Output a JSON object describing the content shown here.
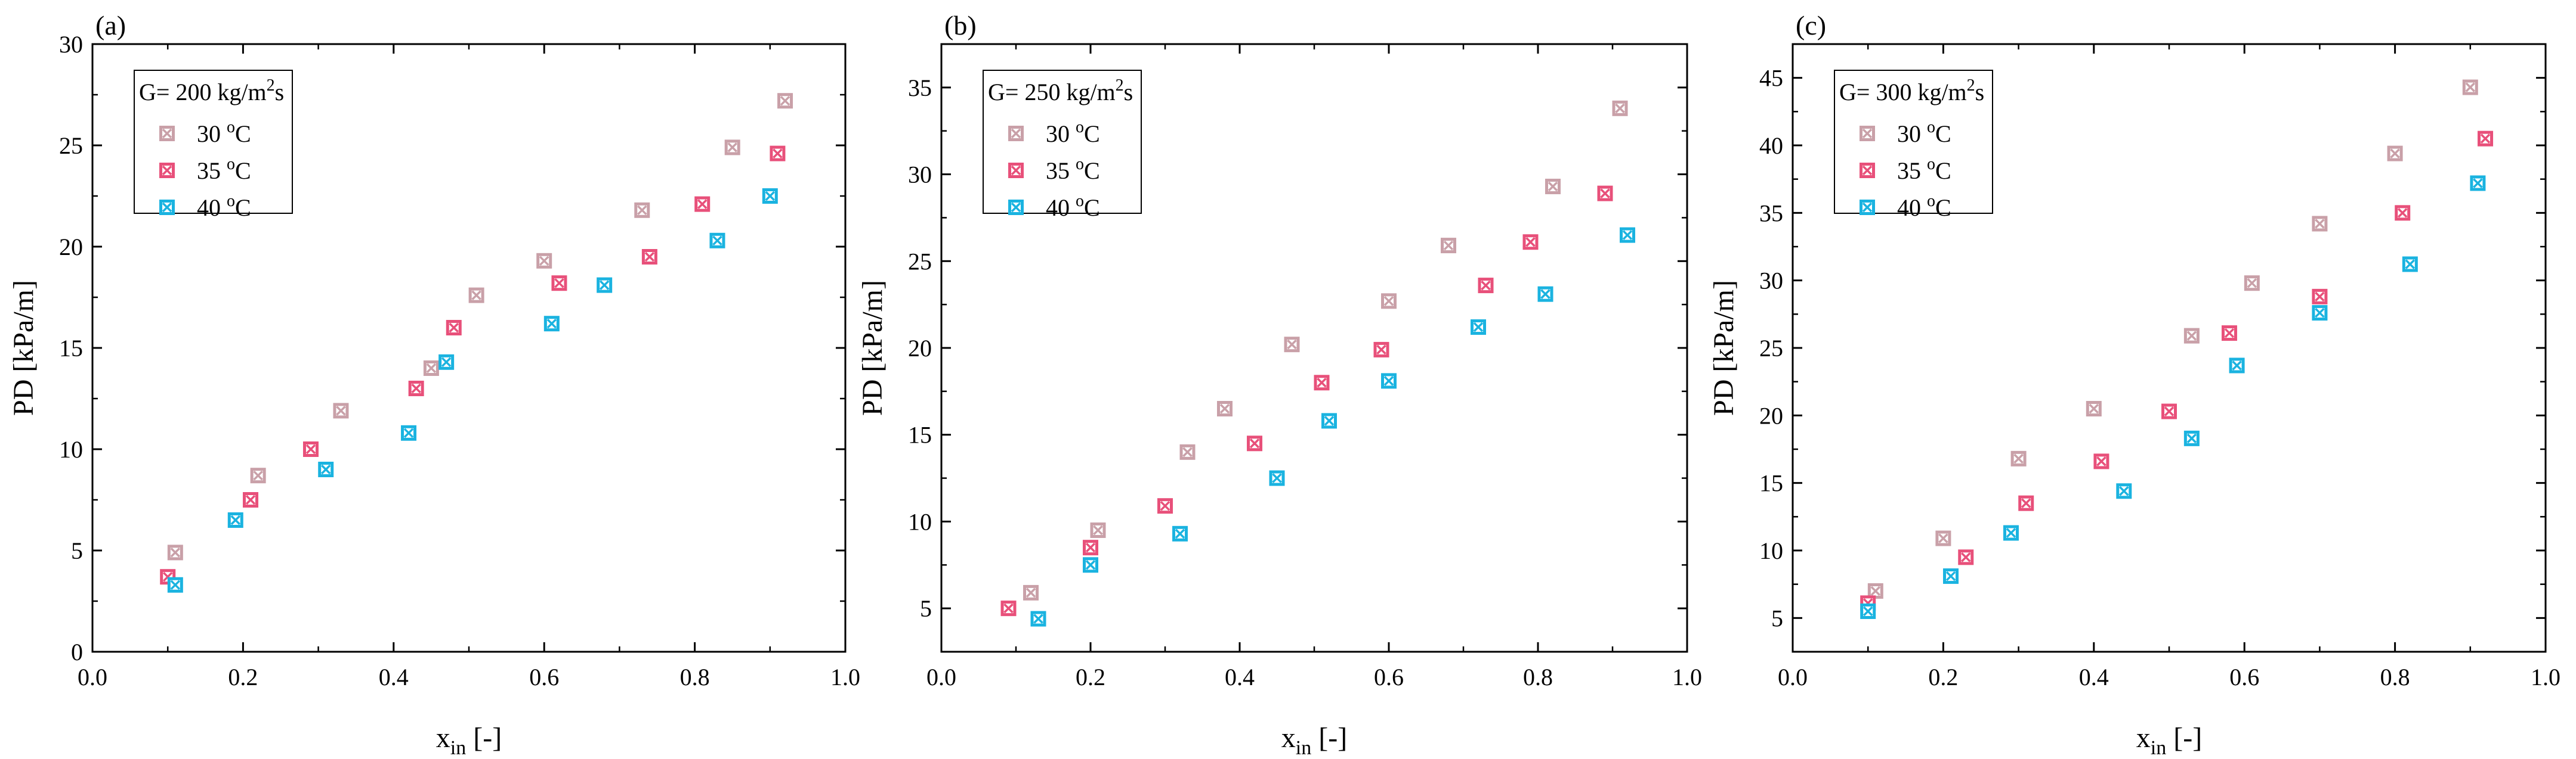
{
  "chart_data": [
    {
      "type": "scatter",
      "panel": "(a)",
      "legend_title": "G= 200 kg/m",
      "legend_title_sup": "2",
      "legend_title_tail": "s",
      "xlabel_main": "x",
      "xlabel_sub": "in",
      "xlabel_tail": " [-]",
      "ylabel": "PD [kPa/m]",
      "xlim": [
        0.0,
        1.0
      ],
      "ylim": [
        0,
        30
      ],
      "xticks": [
        "0.0",
        "0.2",
        "0.4",
        "0.6",
        "0.8",
        "1.0"
      ],
      "yticks": [
        "0",
        "5",
        "10",
        "15",
        "20",
        "25",
        "30"
      ],
      "legend_position": "top-left",
      "grid": false,
      "series": [
        {
          "name": "30 °C",
          "name_base": "30 ",
          "name_sup": "o",
          "name_unit": "C",
          "color": "#c9a0a8",
          "x": [
            0.11,
            0.22,
            0.33,
            0.45,
            0.51,
            0.6,
            0.73,
            0.85,
            0.92
          ],
          "y": [
            4.9,
            8.7,
            11.9,
            14.0,
            17.6,
            19.3,
            21.8,
            24.9,
            27.2
          ]
        },
        {
          "name": "35 °C",
          "name_base": "35 ",
          "name_sup": "o",
          "name_unit": "C",
          "color": "#e8507a",
          "x": [
            0.1,
            0.21,
            0.29,
            0.43,
            0.48,
            0.62,
            0.74,
            0.81,
            0.91
          ],
          "y": [
            3.7,
            7.5,
            10.0,
            13.0,
            16.0,
            18.2,
            19.5,
            22.1,
            24.6
          ]
        },
        {
          "name": "40 °C",
          "name_base": "40 ",
          "name_sup": "o",
          "name_unit": "C",
          "color": "#1ab3e0",
          "x": [
            0.11,
            0.19,
            0.31,
            0.42,
            0.47,
            0.61,
            0.68,
            0.83,
            0.9
          ],
          "y": [
            3.3,
            6.5,
            9.0,
            10.8,
            14.3,
            16.2,
            18.1,
            20.3,
            22.5
          ]
        }
      ]
    },
    {
      "type": "scatter",
      "panel": "(b)",
      "legend_title": "G= 250 kg/m",
      "legend_title_sup": "2",
      "legend_title_tail": "s",
      "xlabel_main": "x",
      "xlabel_sub": "in",
      "xlabel_tail": " [-]",
      "ylabel": "PD [kPa/m]",
      "xlim": [
        0.0,
        1.0
      ],
      "ylim": [
        2.5,
        37.5
      ],
      "xticks": [
        "0.0",
        "0.2",
        "0.4",
        "0.6",
        "0.8",
        "1.0"
      ],
      "yticks": [
        "5",
        "10",
        "15",
        "20",
        "25",
        "30",
        "35"
      ],
      "legend_position": "top-left",
      "grid": false,
      "series": [
        {
          "name": "30 °C",
          "name_base": "30 ",
          "name_sup": "o",
          "name_unit": "C",
          "color": "#c9a0a8",
          "x": [
            0.12,
            0.21,
            0.33,
            0.38,
            0.47,
            0.6,
            0.68,
            0.82,
            0.91
          ],
          "y": [
            5.9,
            9.5,
            14.0,
            16.5,
            20.2,
            22.7,
            25.9,
            29.3,
            33.8
          ]
        },
        {
          "name": "35 °C",
          "name_base": "35 ",
          "name_sup": "o",
          "name_unit": "C",
          "color": "#e8507a",
          "x": [
            0.09,
            0.2,
            0.3,
            0.42,
            0.51,
            0.59,
            0.73,
            0.79,
            0.89
          ],
          "y": [
            5.0,
            8.5,
            10.9,
            14.5,
            18.0,
            19.9,
            23.6,
            26.1,
            28.9
          ]
        },
        {
          "name": "40 °C",
          "name_base": "40 ",
          "name_sup": "o",
          "name_unit": "C",
          "color": "#1ab3e0",
          "x": [
            0.13,
            0.2,
            0.32,
            0.45,
            0.52,
            0.6,
            0.72,
            0.81,
            0.92
          ],
          "y": [
            4.4,
            7.5,
            9.3,
            12.5,
            15.8,
            18.1,
            21.2,
            23.1,
            26.5
          ]
        }
      ]
    },
    {
      "type": "scatter",
      "panel": "(c)",
      "legend_title": "G= 300 kg/m",
      "legend_title_sup": "2",
      "legend_title_tail": "s",
      "xlabel_main": "x",
      "xlabel_sub": "in",
      "xlabel_tail": " [-]",
      "ylabel": "PD [kPa/m]",
      "xlim": [
        0.0,
        1.0
      ],
      "ylim": [
        2.5,
        47.5
      ],
      "xticks": [
        "0.0",
        "0.2",
        "0.4",
        "0.6",
        "0.8",
        "1.0"
      ],
      "yticks": [
        "5",
        "10",
        "15",
        "20",
        "25",
        "30",
        "35",
        "40",
        "45"
      ],
      "legend_position": "top-left",
      "grid": false,
      "series": [
        {
          "name": "30 °C",
          "name_base": "30 ",
          "name_sup": "o",
          "name_unit": "C",
          "color": "#c9a0a8",
          "x": [
            0.11,
            0.2,
            0.3,
            0.4,
            0.53,
            0.61,
            0.7,
            0.8,
            0.9
          ],
          "y": [
            7.0,
            10.9,
            16.8,
            20.5,
            25.9,
            29.8,
            34.2,
            39.4,
            44.3
          ]
        },
        {
          "name": "35 °C",
          "name_base": "35 ",
          "name_sup": "o",
          "name_unit": "C",
          "color": "#e8507a",
          "x": [
            0.1,
            0.23,
            0.31,
            0.41,
            0.5,
            0.58,
            0.7,
            0.81,
            0.92
          ],
          "y": [
            6.1,
            9.5,
            13.5,
            16.6,
            20.3,
            26.1,
            28.8,
            35.0,
            40.5
          ]
        },
        {
          "name": "40 °C",
          "name_base": "40 ",
          "name_sup": "o",
          "name_unit": "C",
          "color": "#1ab3e0",
          "x": [
            0.1,
            0.21,
            0.29,
            0.44,
            0.53,
            0.59,
            0.7,
            0.82,
            0.91
          ],
          "y": [
            5.5,
            8.1,
            11.3,
            14.4,
            18.3,
            23.7,
            27.6,
            31.2,
            37.2
          ]
        }
      ]
    }
  ]
}
